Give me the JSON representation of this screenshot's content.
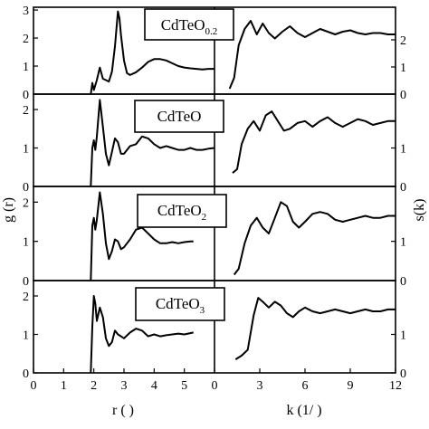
{
  "figure": {
    "x_axes": {
      "left": {
        "label": "r (  )",
        "ticks": [
          "0",
          "1",
          "2",
          "3",
          "4",
          "5"
        ]
      },
      "right": {
        "label": "k (1/   )",
        "ticks": [
          "0",
          "3",
          "6",
          "9",
          "12"
        ]
      }
    },
    "y_axes": {
      "left": {
        "label": "g (r)"
      },
      "right": {
        "label": "s(k)"
      }
    }
  },
  "chart_data": [
    {
      "type": "line",
      "panel": "CdTeO0.2",
      "side": "g(r)",
      "title": {
        "main": "CdTeO",
        "sub": "0.2"
      },
      "xlabel": "r",
      "ylabel": "g(r)",
      "xlim": [
        0,
        6
      ],
      "ylim": [
        0,
        3.1
      ],
      "yticks": [
        "0",
        "1",
        "2",
        "3"
      ],
      "x": [
        1.9,
        1.95,
        2.0,
        2.1,
        2.2,
        2.3,
        2.4,
        2.5,
        2.6,
        2.7,
        2.8,
        2.85,
        2.9,
        3.0,
        3.1,
        3.2,
        3.4,
        3.6,
        3.8,
        4.0,
        4.2,
        4.4,
        4.6,
        4.8,
        5.0,
        5.2,
        5.4,
        5.6,
        5.8,
        6.0
      ],
      "y": [
        0,
        0.4,
        0.15,
        0.5,
        0.95,
        0.55,
        0.5,
        0.45,
        0.8,
        1.7,
        2.95,
        2.7,
        2.1,
        1.2,
        0.75,
        0.68,
        0.78,
        0.95,
        1.15,
        1.25,
        1.25,
        1.2,
        1.1,
        1.0,
        0.95,
        0.92,
        0.9,
        0.88,
        0.9,
        0.9
      ]
    },
    {
      "type": "line",
      "panel": "CdTeO0.2",
      "side": "s(k)",
      "xlabel": "k",
      "ylabel": "s(k)",
      "xlim": [
        0,
        12
      ],
      "ylim": [
        0,
        3.2
      ],
      "yticks": [
        "0",
        "1",
        "2"
      ],
      "x": [
        1.0,
        1.3,
        1.6,
        2.0,
        2.4,
        2.8,
        3.2,
        3.6,
        4.0,
        4.5,
        5.0,
        5.5,
        6.0,
        6.5,
        7.0,
        7.5,
        8.0,
        8.5,
        9.0,
        9.5,
        10.0,
        10.5,
        11.0,
        11.5,
        12.0
      ],
      "y": [
        0.2,
        0.6,
        1.8,
        2.4,
        2.7,
        2.2,
        2.6,
        2.25,
        2.05,
        2.3,
        2.5,
        2.25,
        2.1,
        2.25,
        2.4,
        2.3,
        2.2,
        2.3,
        2.35,
        2.25,
        2.2,
        2.25,
        2.25,
        2.2,
        2.2
      ]
    },
    {
      "type": "line",
      "panel": "CdTeO",
      "side": "g(r)",
      "title": {
        "main": "CdTeO",
        "sub": ""
      },
      "xlabel": "r",
      "ylabel": "g(r)",
      "xlim": [
        0,
        6
      ],
      "ylim": [
        0,
        2.4
      ],
      "yticks": [
        "0",
        "1",
        "2"
      ],
      "x": [
        1.9,
        1.95,
        2.0,
        2.05,
        2.1,
        2.2,
        2.3,
        2.4,
        2.5,
        2.6,
        2.7,
        2.8,
        2.9,
        3.0,
        3.2,
        3.4,
        3.6,
        3.8,
        4.0,
        4.2,
        4.4,
        4.6,
        4.8,
        5.0,
        5.2,
        5.4,
        5.6,
        5.8,
        6.0
      ],
      "y": [
        0,
        1.0,
        1.2,
        0.95,
        1.3,
        2.25,
        1.55,
        0.85,
        0.55,
        0.9,
        1.25,
        1.15,
        0.85,
        0.85,
        1.05,
        1.1,
        1.3,
        1.25,
        1.1,
        1.0,
        1.05,
        1.0,
        0.95,
        0.95,
        1.0,
        0.95,
        0.95,
        0.98,
        1.0
      ]
    },
    {
      "type": "line",
      "panel": "CdTeO",
      "side": "s(k)",
      "xlabel": "k",
      "ylabel": "s(k)",
      "xlim": [
        0,
        12
      ],
      "ylim": [
        0,
        2.4
      ],
      "yticks": [
        "0",
        "1"
      ],
      "x": [
        1.2,
        1.5,
        1.8,
        2.2,
        2.6,
        3.0,
        3.4,
        3.8,
        4.2,
        4.6,
        5.0,
        5.5,
        6.0,
        6.5,
        7.0,
        7.5,
        8.0,
        8.5,
        9.0,
        9.5,
        10.0,
        10.5,
        11.0,
        11.5,
        12.0
      ],
      "y": [
        0.35,
        0.45,
        1.1,
        1.5,
        1.7,
        1.45,
        1.85,
        1.95,
        1.7,
        1.45,
        1.5,
        1.65,
        1.7,
        1.55,
        1.7,
        1.8,
        1.65,
        1.55,
        1.65,
        1.75,
        1.7,
        1.6,
        1.65,
        1.7,
        1.7
      ]
    },
    {
      "type": "line",
      "panel": "CdTeO2",
      "side": "g(r)",
      "title": {
        "main": "CdTeO",
        "sub": "2"
      },
      "xlabel": "r",
      "ylabel": "g(r)",
      "xlim": [
        0,
        6
      ],
      "ylim": [
        0,
        2.4
      ],
      "yticks": [
        "0",
        "1",
        "2"
      ],
      "x": [
        1.9,
        1.95,
        2.0,
        2.05,
        2.1,
        2.2,
        2.3,
        2.4,
        2.5,
        2.6,
        2.7,
        2.8,
        2.9,
        3.0,
        3.2,
        3.4,
        3.6,
        3.8,
        4.0,
        4.2,
        4.4,
        4.6,
        4.8,
        5.0,
        5.2,
        5.3
      ],
      "y": [
        0,
        1.4,
        1.6,
        1.3,
        1.55,
        2.25,
        1.7,
        0.95,
        0.55,
        0.75,
        1.05,
        1.0,
        0.8,
        0.85,
        1.05,
        1.3,
        1.35,
        1.2,
        1.05,
        0.95,
        0.95,
        0.98,
        0.95,
        0.98,
        1.0,
        1.0
      ]
    },
    {
      "type": "line",
      "panel": "CdTeO2",
      "side": "s(k)",
      "xlabel": "k",
      "ylabel": "s(k)",
      "xlim": [
        0,
        12
      ],
      "ylim": [
        0,
        2.4
      ],
      "yticks": [
        "0",
        "1"
      ],
      "x": [
        1.3,
        1.6,
        2.0,
        2.4,
        2.8,
        3.2,
        3.6,
        4.0,
        4.4,
        4.8,
        5.2,
        5.6,
        6.0,
        6.5,
        7.0,
        7.5,
        8.0,
        8.5,
        9.0,
        9.5,
        10.0,
        10.5,
        11.0,
        11.5,
        12.0
      ],
      "y": [
        0.15,
        0.3,
        0.95,
        1.4,
        1.6,
        1.35,
        1.2,
        1.6,
        2.0,
        1.9,
        1.5,
        1.35,
        1.5,
        1.7,
        1.75,
        1.7,
        1.55,
        1.5,
        1.55,
        1.6,
        1.65,
        1.6,
        1.6,
        1.65,
        1.65
      ]
    },
    {
      "type": "line",
      "panel": "CdTeO3",
      "side": "g(r)",
      "title": {
        "main": "CdTeO",
        "sub": "3"
      },
      "xlabel": "r",
      "ylabel": "g(r)",
      "xlim": [
        0,
        6
      ],
      "ylim": [
        0,
        2.4
      ],
      "yticks": [
        "0",
        "1",
        "2"
      ],
      "x": [
        1.9,
        1.95,
        2.0,
        2.05,
        2.1,
        2.2,
        2.3,
        2.4,
        2.5,
        2.6,
        2.7,
        2.8,
        2.9,
        3.0,
        3.2,
        3.4,
        3.6,
        3.8,
        4.0,
        4.2,
        4.4,
        4.6,
        4.8,
        5.0,
        5.3
      ],
      "y": [
        0,
        1.2,
        2.0,
        1.8,
        1.35,
        1.7,
        1.45,
        0.9,
        0.7,
        0.8,
        1.1,
        1.0,
        0.95,
        0.9,
        1.05,
        1.15,
        1.1,
        0.95,
        1.0,
        0.95,
        0.98,
        1.0,
        1.02,
        1.0,
        1.05
      ]
    },
    {
      "type": "line",
      "panel": "CdTeO3",
      "side": "s(k)",
      "xlabel": "k",
      "ylabel": "s(k)",
      "xlim": [
        0,
        12
      ],
      "ylim": [
        0,
        2.4
      ],
      "yticks": [
        "0",
        "1"
      ],
      "x": [
        1.4,
        1.8,
        2.2,
        2.6,
        2.9,
        3.2,
        3.6,
        4.0,
        4.4,
        4.8,
        5.2,
        5.6,
        6.0,
        6.5,
        7.0,
        7.5,
        8.0,
        8.5,
        9.0,
        9.5,
        10.0,
        10.5,
        11.0,
        11.5,
        12.0
      ],
      "y": [
        0.35,
        0.45,
        0.6,
        1.5,
        1.95,
        1.85,
        1.7,
        1.85,
        1.75,
        1.55,
        1.45,
        1.6,
        1.7,
        1.6,
        1.55,
        1.6,
        1.65,
        1.6,
        1.55,
        1.6,
        1.65,
        1.6,
        1.6,
        1.65,
        1.65
      ]
    }
  ]
}
